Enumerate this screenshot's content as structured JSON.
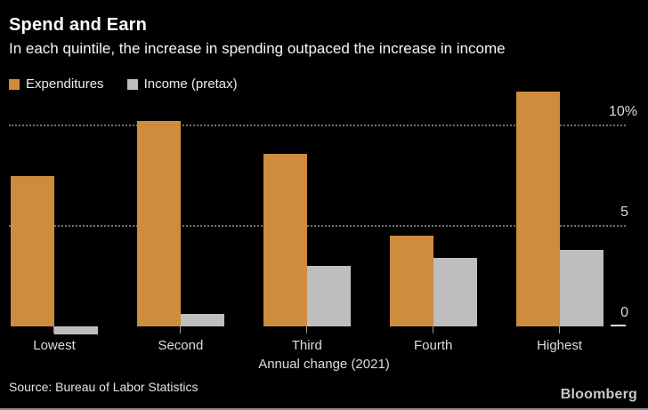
{
  "header": {
    "title": "Spend and Earn",
    "subtitle": "In each quintile, the increase in spending outpaced the increase in income"
  },
  "legend": [
    {
      "label": "Expenditures",
      "color": "#CE8C3D"
    },
    {
      "label": "Income (pretax)",
      "color": "#BEBEBE"
    }
  ],
  "chart_data": {
    "type": "bar",
    "title": "Spend and Earn",
    "subtitle": "In each quintile, the increase in spending outpaced the increase in income",
    "categories": [
      "Lowest",
      "Second",
      "Third",
      "Fourth",
      "Highest"
    ],
    "series": [
      {
        "name": "Expenditures",
        "color": "#CE8C3D",
        "values": [
          7.5,
          10.2,
          8.6,
          4.5,
          11.7
        ]
      },
      {
        "name": "Income (pretax)",
        "color": "#BEBEBE",
        "values": [
          -0.4,
          0.6,
          3.0,
          3.4,
          3.8
        ]
      }
    ],
    "xlabel": "Annual change (2021)",
    "ylabel": "",
    "unit": "percent",
    "y_ticks": [
      {
        "value": 0,
        "label": "0"
      },
      {
        "value": 5,
        "label": "5"
      },
      {
        "value": 10,
        "label": "10%"
      }
    ],
    "ylim": [
      -0.5,
      11.7
    ],
    "grid": "horizontal dotted at 5 and 10, zero shown as short right-side tick",
    "legend_position": "top-left",
    "axis_label_side": "right"
  },
  "footer": {
    "source": "Source: Bureau of Labor Statistics",
    "brand": "Bloomberg"
  }
}
